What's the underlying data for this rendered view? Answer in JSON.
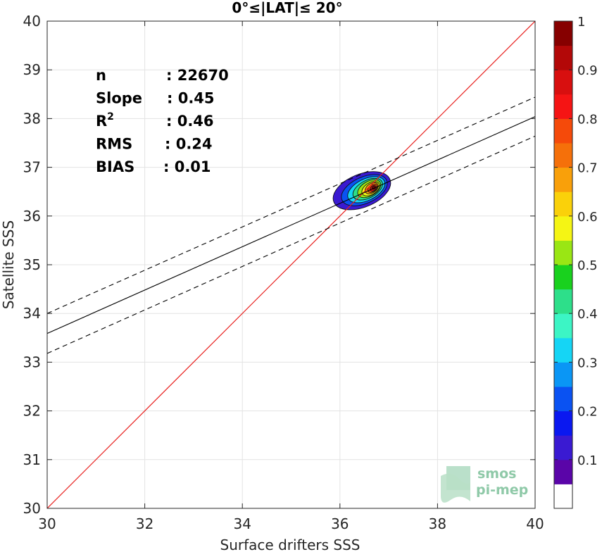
{
  "chart_data": {
    "type": "heatmap",
    "title": "0°≤|LAT|≤ 20°",
    "xlabel": "Surface drifters SSS",
    "ylabel": "Satellite SSS",
    "xlim": [
      30,
      40
    ],
    "ylim": [
      30,
      40
    ],
    "xticks": [
      "30",
      "32",
      "34",
      "36",
      "38",
      "40"
    ],
    "yticks": [
      "30",
      "31",
      "32",
      "33",
      "34",
      "35",
      "36",
      "37",
      "38",
      "39",
      "40"
    ],
    "grid": true,
    "stats": [
      {
        "label": "n",
        "value": ": 22670"
      },
      {
        "label": "Slope",
        "value": ": 0.45"
      },
      {
        "label": "R²",
        "value": ": 0.46"
      },
      {
        "label": "RMS",
        "value": ": 0.24"
      },
      {
        "label": "BIAS",
        "value": ": 0.01"
      }
    ],
    "identity_line": {
      "color": "#e8201e",
      "from": [
        30,
        30
      ],
      "to": [
        40,
        40
      ]
    },
    "regression_line": {
      "slope": 0.45,
      "points": [
        [
          30,
          33.59
        ],
        [
          40,
          38.04
        ]
      ]
    },
    "regression_bounds": [
      {
        "points": [
          [
            30,
            34.0
          ],
          [
            40,
            38.44
          ]
        ]
      },
      {
        "points": [
          [
            30,
            33.18
          ],
          [
            40,
            37.64
          ]
        ]
      }
    ],
    "density_contours": [
      {
        "level": 0.05,
        "cx": 36.45,
        "cy": 36.52,
        "rx": 0.62,
        "ry": 0.34,
        "angle": 22
      },
      {
        "level": 0.15,
        "cx": 36.5,
        "cy": 36.53,
        "rx": 0.5,
        "ry": 0.27,
        "angle": 24
      },
      {
        "level": 0.25,
        "cx": 36.54,
        "cy": 36.54,
        "rx": 0.41,
        "ry": 0.22,
        "angle": 26
      },
      {
        "level": 0.35,
        "cx": 36.57,
        "cy": 36.55,
        "rx": 0.33,
        "ry": 0.18,
        "angle": 28
      },
      {
        "level": 0.45,
        "cx": 36.6,
        "cy": 36.56,
        "rx": 0.26,
        "ry": 0.15,
        "angle": 30
      },
      {
        "level": 0.55,
        "cx": 36.63,
        "cy": 36.56,
        "rx": 0.2,
        "ry": 0.12,
        "angle": 32
      },
      {
        "level": 0.65,
        "cx": 36.65,
        "cy": 36.57,
        "rx": 0.15,
        "ry": 0.095,
        "angle": 34
      },
      {
        "level": 0.75,
        "cx": 36.67,
        "cy": 36.57,
        "rx": 0.11,
        "ry": 0.07,
        "angle": 36
      },
      {
        "level": 0.85,
        "cx": 36.68,
        "cy": 36.57,
        "rx": 0.07,
        "ry": 0.05,
        "angle": 38
      },
      {
        "level": 0.95,
        "cx": 36.69,
        "cy": 36.58,
        "rx": 0.035,
        "ry": 0.028,
        "angle": 40
      }
    ],
    "colorbar": {
      "range": [
        0,
        1
      ],
      "ticks": [
        "0.1",
        "0.2",
        "0.3",
        "0.4",
        "0.5",
        "0.6",
        "0.7",
        "0.8",
        "0.9",
        "1"
      ],
      "colors": [
        "#ffffff",
        "#5a05a8",
        "#3a1ad2",
        "#0a18f0",
        "#0a52f2",
        "#0a96f5",
        "#15d5f5",
        "#3cf5c5",
        "#2ddf8a",
        "#19d11e",
        "#9ae614",
        "#f5f514",
        "#fad10a",
        "#f9a00a",
        "#f5700a",
        "#f54a0a",
        "#f51414",
        "#d80f0f",
        "#b30808",
        "#860000"
      ]
    }
  },
  "watermark": {
    "line1": "smos",
    "line2": "pi-mep",
    "color": "#8fc9a8"
  }
}
